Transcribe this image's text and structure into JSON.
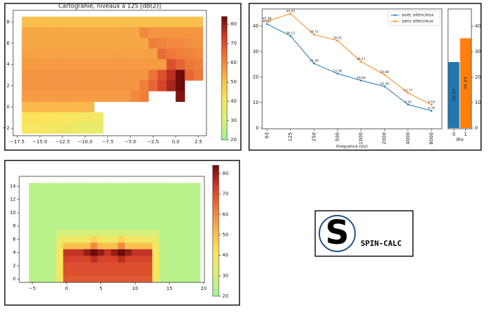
{
  "chart_data": [
    {
      "type": "heatmap",
      "title": "Cartograhie, niveaux à 125 [dB(Z)]",
      "x": [
        -16.5,
        -15.5,
        -14.5,
        -13.5,
        -12.5,
        -11.5,
        -10.5,
        -9.5,
        -8.5,
        -7.5,
        -6.5,
        -5.5,
        -4.5,
        -3.5,
        -2.5,
        -1.5,
        -0.5,
        0.5,
        1.5,
        2.5
      ],
      "y": [
        8,
        7,
        6,
        5,
        4,
        3,
        2,
        1,
        0,
        -1,
        -2
      ],
      "values": [
        [
          50,
          50,
          50,
          50,
          50,
          50,
          50,
          50,
          50,
          50,
          50,
          50,
          50,
          50,
          50,
          50,
          50,
          50,
          50,
          50
        ],
        [
          55,
          55,
          55,
          55,
          55,
          55,
          55,
          55,
          55,
          55,
          55,
          55,
          55,
          60,
          58,
          58,
          58,
          58,
          58,
          58
        ],
        [
          55,
          55,
          55,
          55,
          55,
          55,
          55,
          55,
          55,
          55,
          55,
          55,
          55,
          55,
          62,
          61,
          60,
          60,
          59,
          58
        ],
        [
          56,
          56,
          56,
          56,
          56,
          56,
          56,
          56,
          56,
          56,
          56,
          56,
          56,
          56,
          56,
          65,
          63,
          62,
          61,
          60
        ],
        [
          57,
          57,
          57,
          57,
          57,
          57,
          57,
          57,
          57,
          57,
          57,
          57,
          57,
          57,
          57,
          57,
          70,
          66,
          63,
          62
        ],
        [
          58,
          58,
          58,
          58,
          58,
          58,
          58,
          58,
          58,
          58,
          58,
          58,
          58,
          58,
          64,
          70,
          76,
          84,
          66,
          63
        ],
        [
          58,
          58,
          58,
          58,
          58,
          58,
          58,
          58,
          58,
          58,
          58,
          58,
          58,
          62,
          66,
          72,
          78,
          84,
          null,
          null
        ],
        [
          57,
          57,
          57,
          57,
          57,
          57,
          57,
          57,
          57,
          57,
          57,
          57,
          60,
          62,
          null,
          null,
          null,
          82,
          null,
          null
        ],
        [
          52,
          52,
          52,
          52,
          52,
          52,
          52,
          52,
          null,
          null,
          null,
          null,
          null,
          null,
          null,
          null,
          null,
          null,
          null,
          null
        ],
        [
          42,
          42,
          41,
          41,
          40,
          40,
          39,
          39,
          38,
          null,
          null,
          null,
          null,
          null,
          null,
          null,
          null,
          null,
          null,
          null
        ],
        [
          40,
          40,
          39,
          39,
          38,
          37,
          36,
          36,
          35,
          null,
          null,
          null,
          null,
          null,
          null,
          null,
          null,
          null,
          null,
          null
        ]
      ],
      "xlim": [
        -17.96,
        3.4
      ],
      "ylim": [
        -2.7,
        9.1
      ],
      "xticks": [
        {
          "value": -17.5,
          "label": "−17.5"
        },
        {
          "value": -15,
          "label": "−15.0"
        },
        {
          "value": -12.5,
          "label": "−12.5"
        },
        {
          "value": -10,
          "label": "−10.0"
        },
        {
          "value": -7.5,
          "label": "−7.5"
        },
        {
          "value": -5,
          "label": "−5.0"
        },
        {
          "value": -2.5,
          "label": "−2.5"
        },
        {
          "value": 0,
          "label": "0.0"
        },
        {
          "value": 2.5,
          "label": "2.5"
        }
      ],
      "yticks": [
        8,
        6,
        4,
        2,
        0,
        {
          "value": -2,
          "label": "−2"
        }
      ],
      "colormap": [
        "#9df29a",
        "#d9f07a",
        "#fbe55c",
        "#f9b84a",
        "#ee7a3a",
        "#d23b2a",
        "#6e0b0b"
      ],
      "colorbar": {
        "lim": [
          20,
          84
        ],
        "ticks": [
          20,
          30,
          40,
          50,
          60,
          70,
          80
        ]
      }
    },
    {
      "type": "line",
      "xlabel": "Frequence (Hz)",
      "categories": [
        "63",
        "125",
        "250",
        "500",
        "1000",
        "2000",
        "4000",
        "8000"
      ],
      "series": [
        {
          "name": "avec silencieux",
          "color": "#1f77b4",
          "values": [
            40.87,
            36.21,
            25.39,
            21.38,
            18.69,
            16.36,
            9.24,
            6.76
          ]
        },
        {
          "name": "sans silencieux",
          "color": "#ff7f0e",
          "values": [
            41.98,
            44.93,
            36.73,
            34.41,
            26.11,
            20.98,
            13.77,
            9.16
          ]
        }
      ],
      "ylim": [
        -0.3,
        46.8
      ],
      "yticks": [
        0,
        10,
        20,
        30,
        40
      ],
      "legend": "upper right"
    },
    {
      "type": "bar",
      "xlabel": "dba",
      "categories": [
        "0",
        "1"
      ],
      "values": [
        25.93,
        35.29
      ],
      "colors": [
        "#1f77b4",
        "#ff7f0e"
      ],
      "ylim": [
        -0.3,
        46.8
      ],
      "yticks": [
        0,
        10,
        20,
        30,
        40
      ]
    },
    {
      "type": "heatmap",
      "x": [
        -5,
        -4,
        -3,
        -2,
        -1,
        0,
        1,
        2,
        3,
        4,
        5,
        6,
        7,
        8,
        9,
        10,
        11,
        12,
        13,
        14,
        15,
        16,
        17,
        18,
        19
      ],
      "y": [
        14,
        13,
        12,
        11,
        10,
        9,
        8,
        7,
        6,
        5,
        4,
        3,
        2,
        1,
        0
      ],
      "values": [
        [
          25,
          25,
          25,
          25,
          25,
          25,
          25,
          25,
          25,
          25,
          25,
          25,
          25,
          25,
          25,
          25,
          25,
          25,
          25,
          25,
          25,
          25,
          25,
          25,
          25
        ],
        [
          25,
          25,
          25,
          25,
          25,
          25,
          25,
          25,
          25,
          25,
          25,
          25,
          25,
          25,
          25,
          25,
          25,
          25,
          25,
          25,
          25,
          25,
          25,
          25,
          25
        ],
        [
          25,
          25,
          25,
          25,
          25,
          25,
          25,
          25,
          25,
          25,
          25,
          25,
          25,
          25,
          25,
          25,
          25,
          25,
          25,
          25,
          25,
          25,
          25,
          25,
          25
        ],
        [
          25,
          25,
          25,
          25,
          25,
          25,
          25,
          25,
          25,
          25,
          25,
          25,
          25,
          25,
          25,
          25,
          25,
          25,
          25,
          25,
          25,
          25,
          25,
          25,
          25
        ],
        [
          25,
          25,
          25,
          25,
          25,
          25,
          25,
          25,
          25,
          25,
          25,
          25,
          25,
          25,
          25,
          25,
          25,
          25,
          25,
          25,
          25,
          25,
          25,
          25,
          25
        ],
        [
          25,
          25,
          25,
          25,
          25,
          25,
          25,
          25,
          25,
          25,
          25,
          25,
          25,
          25,
          25,
          25,
          25,
          25,
          25,
          25,
          25,
          25,
          25,
          25,
          25
        ],
        [
          25,
          25,
          25,
          25,
          25,
          25,
          25,
          25,
          25,
          25,
          25,
          25,
          25,
          25,
          25,
          25,
          25,
          25,
          25,
          25,
          25,
          25,
          25,
          25,
          25
        ],
        [
          25,
          25,
          25,
          25,
          30,
          30,
          30,
          30,
          30,
          30,
          30,
          30,
          30,
          30,
          30,
          30,
          30,
          30,
          30,
          25,
          25,
          25,
          25,
          25,
          25
        ],
        [
          25,
          25,
          25,
          25,
          35,
          38,
          38,
          38,
          38,
          45,
          38,
          38,
          38,
          45,
          38,
          38,
          38,
          38,
          35,
          25,
          25,
          25,
          25,
          25,
          25
        ],
        [
          25,
          25,
          25,
          25,
          38,
          50,
          50,
          50,
          50,
          60,
          50,
          50,
          50,
          60,
          50,
          50,
          50,
          50,
          38,
          25,
          25,
          25,
          25,
          25,
          25
        ],
        [
          25,
          25,
          25,
          25,
          40,
          75,
          75,
          75,
          80,
          84,
          80,
          75,
          80,
          84,
          80,
          75,
          75,
          75,
          40,
          25,
          25,
          25,
          25,
          25,
          25
        ],
        [
          25,
          25,
          25,
          25,
          40,
          72,
          72,
          72,
          72,
          76,
          72,
          72,
          72,
          76,
          72,
          72,
          72,
          72,
          40,
          25,
          25,
          25,
          25,
          25,
          25
        ],
        [
          25,
          25,
          25,
          25,
          40,
          70,
          70,
          70,
          70,
          70,
          70,
          70,
          70,
          70,
          70,
          70,
          70,
          70,
          40,
          25,
          25,
          25,
          25,
          25,
          25
        ],
        [
          25,
          25,
          25,
          25,
          40,
          70,
          70,
          70,
          70,
          70,
          70,
          70,
          70,
          70,
          70,
          70,
          70,
          70,
          40,
          25,
          25,
          25,
          25,
          25,
          25
        ],
        [
          25,
          25,
          25,
          25,
          38,
          68,
          68,
          68,
          68,
          68,
          68,
          68,
          68,
          68,
          68,
          68,
          68,
          68,
          38,
          25,
          25,
          25,
          25,
          25,
          25
        ]
      ],
      "xlim": [
        -6.9,
        20.1
      ],
      "ylim": [
        -0.5,
        15.5
      ],
      "xticks": [
        {
          "value": -5,
          "label": "−5"
        },
        0,
        5,
        10,
        15,
        20
      ],
      "yticks": [
        0,
        2,
        4,
        6,
        8,
        10,
        12,
        14
      ],
      "colormap": [
        "#9df29a",
        "#d9f07a",
        "#fbe55c",
        "#f9b84a",
        "#ee7a3a",
        "#d23b2a",
        "#6e0b0b"
      ],
      "colorbar": {
        "lim": [
          20,
          84
        ],
        "ticks": [
          20,
          30,
          40,
          50,
          60,
          70,
          80
        ]
      }
    }
  ],
  "logo": {
    "letter": "S",
    "text": "SPIN-CALC"
  }
}
